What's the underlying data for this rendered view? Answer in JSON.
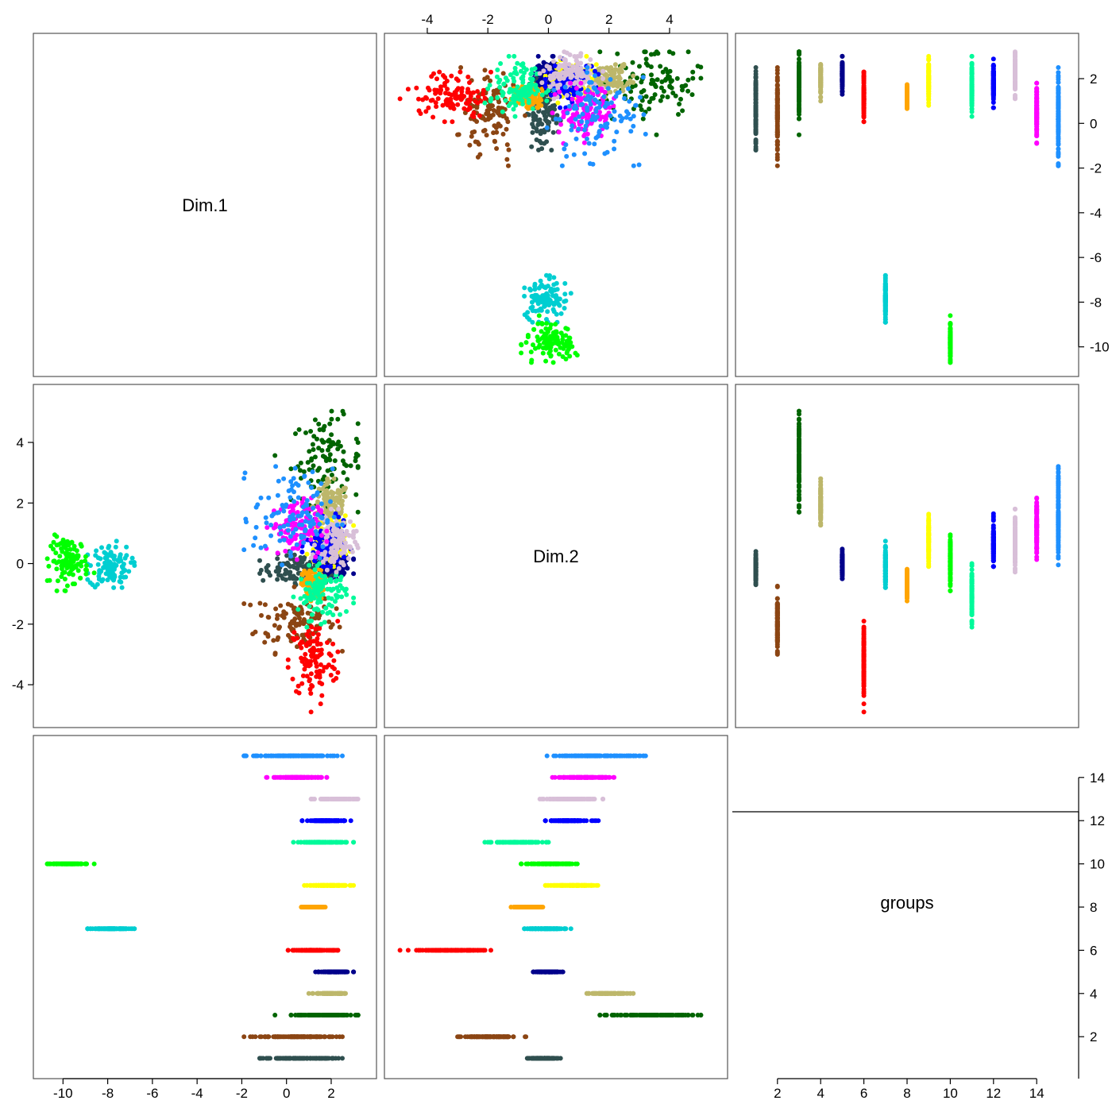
{
  "chart_data": {
    "type": "scatter",
    "title": "",
    "variables": [
      "Dim.1",
      "Dim.2",
      "groups"
    ],
    "grid": false,
    "legend": "none",
    "axes": {
      "Dim.1": {
        "range": [
          -10.9,
          3.6
        ],
        "ticks": [
          -10,
          -8,
          -6,
          -4,
          -2,
          0,
          2
        ],
        "tick_labels": [
          "-10",
          "-8",
          "-6",
          "-4",
          "-2",
          "0",
          "2"
        ]
      },
      "Dim.2": {
        "range": [
          -5.1,
          5.6
        ],
        "ticks": [
          -4,
          -2,
          0,
          2,
          4
        ],
        "tick_labels": [
          "-4",
          "-2",
          "0",
          "2",
          "4"
        ]
      },
      "groups": {
        "range": [
          0.5,
          15.5
        ],
        "ticks": [
          2,
          4,
          6,
          8,
          10,
          12,
          14
        ],
        "tick_labels": [
          "2",
          "4",
          "6",
          "8",
          "10",
          "12",
          "14"
        ]
      }
    },
    "top_axis_ticks": [
      -4,
      -2,
      0,
      2,
      4
    ],
    "right_axis_ticks_row1": [
      -10,
      -8,
      -6,
      -4,
      -2,
      0,
      2
    ],
    "right_axis_ticks_row3": [
      2,
      4,
      6,
      8,
      10,
      12,
      14
    ],
    "series": [
      {
        "group": 1,
        "color": "#2f4f4f",
        "dim1_range": [
          -2.1,
          2.5
        ],
        "dim2_range": [
          -0.7,
          0.5
        ],
        "dim1_center": 0.7,
        "dim2_center": -0.2
      },
      {
        "group": 2,
        "color": "#8b4513",
        "dim1_range": [
          -1.9,
          2.5
        ],
        "dim2_range": [
          -3.0,
          -0.5
        ],
        "dim1_center": 0.4,
        "dim2_center": -1.9
      },
      {
        "group": 3,
        "color": "#006400",
        "dim1_range": [
          -0.8,
          3.2
        ],
        "dim2_range": [
          1.7,
          5.2
        ],
        "dim1_center": 1.8,
        "dim2_center": 3.4
      },
      {
        "group": 4,
        "color": "#bdb76b",
        "dim1_range": [
          1.0,
          3.0
        ],
        "dim2_range": [
          0.9,
          2.8
        ],
        "dim1_center": 2.0,
        "dim2_center": 1.9
      },
      {
        "group": 5,
        "color": "#00008b",
        "dim1_range": [
          1.3,
          3.0
        ],
        "dim2_range": [
          -0.5,
          0.5
        ],
        "dim1_center": 2.2,
        "dim2_center": 0.0
      },
      {
        "group": 6,
        "color": "#ff0000",
        "dim1_range": [
          -0.4,
          2.3
        ],
        "dim2_range": [
          -4.9,
          -1.7
        ],
        "dim1_center": 1.2,
        "dim2_center": -3.2
      },
      {
        "group": 7,
        "color": "#00ced1",
        "dim1_range": [
          -8.9,
          -6.6
        ],
        "dim2_range": [
          -1.0,
          0.8
        ],
        "dim1_center": -7.9,
        "dim2_center": -0.1
      },
      {
        "group": 8,
        "color": "#ffa500",
        "dim1_range": [
          0.6,
          1.8
        ],
        "dim2_range": [
          -1.3,
          -0.1
        ],
        "dim1_center": 1.2,
        "dim2_center": -0.7
      },
      {
        "group": 9,
        "color": "#ffff00",
        "dim1_range": [
          0.8,
          3.0
        ],
        "dim2_range": [
          -0.1,
          1.8
        ],
        "dim1_center": 1.9,
        "dim2_center": 0.8
      },
      {
        "group": 10,
        "color": "#00ff00",
        "dim1_range": [
          -10.7,
          -8.6
        ],
        "dim2_range": [
          -0.9,
          1.0
        ],
        "dim1_center": -9.7,
        "dim2_center": 0.1
      },
      {
        "group": 11,
        "color": "#00fa9a",
        "dim1_range": [
          0.3,
          3.0
        ],
        "dim2_range": [
          -2.1,
          0.0
        ],
        "dim1_center": 1.6,
        "dim2_center": -1.0
      },
      {
        "group": 12,
        "color": "#0000ff",
        "dim1_range": [
          0.7,
          3.0
        ],
        "dim2_range": [
          -0.1,
          1.7
        ],
        "dim1_center": 1.8,
        "dim2_center": 0.6
      },
      {
        "group": 13,
        "color": "#d8bfd8",
        "dim1_range": [
          1.1,
          3.2
        ],
        "dim2_range": [
          -0.4,
          1.8
        ],
        "dim1_center": 2.2,
        "dim2_center": 0.7
      },
      {
        "group": 14,
        "color": "#ff00ff",
        "dim1_range": [
          -0.9,
          1.8
        ],
        "dim2_range": [
          0.1,
          2.4
        ],
        "dim1_center": 0.4,
        "dim2_center": 1.2
      },
      {
        "group": 15,
        "color": "#1e90ff",
        "dim1_range": [
          -1.9,
          2.5
        ],
        "dim2_range": [
          -0.3,
          3.5
        ],
        "dim1_center": 0.3,
        "dim2_center": 1.6
      }
    ],
    "diagonal_labels": [
      "Dim.1",
      "Dim.2",
      "groups"
    ]
  }
}
